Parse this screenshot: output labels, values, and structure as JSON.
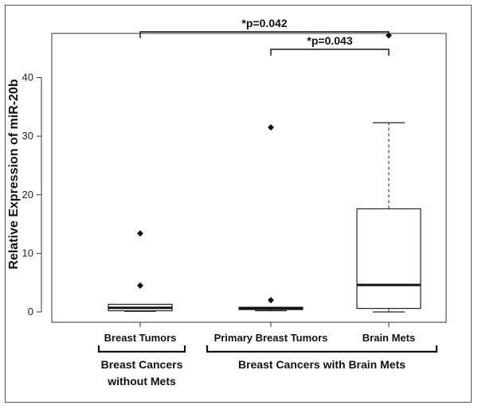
{
  "chart_data": {
    "type": "boxplot",
    "ylabel": "Relative Expression of miR-20b",
    "ylim": [
      0,
      47
    ],
    "yticks": [
      0,
      10,
      20,
      30,
      40
    ],
    "categories": [
      "Breast Tumors",
      "Primary Breast Tumors",
      "Brain Mets"
    ],
    "boxes": [
      {
        "name": "Breast Tumors",
        "min": 0.1,
        "q1": 0.2,
        "median": 0.7,
        "q3": 1.3,
        "max": 1.4,
        "outliers": [
          4.5,
          13.4
        ]
      },
      {
        "name": "Primary Breast Tumors",
        "min": 0.2,
        "q1": 0.4,
        "median": 0.6,
        "q3": 0.8,
        "max": 0.9,
        "outliers": [
          2.0,
          31.5
        ]
      },
      {
        "name": "Brain Mets",
        "min": 0.0,
        "q1": 0.6,
        "median": 4.6,
        "q3": 17.6,
        "max": 32.3,
        "outliers": [
          47.2
        ]
      }
    ],
    "comparisons": [
      {
        "from": "Breast Tumors",
        "to": "Brain Mets",
        "label": "*p=0.042"
      },
      {
        "from": "Primary Breast Tumors",
        "to": "Brain Mets",
        "label": "*p=0.043"
      }
    ],
    "groups": [
      {
        "lines": [
          "Breast Cancers",
          "without Mets"
        ],
        "categories": [
          "Breast Tumors"
        ]
      },
      {
        "lines": [
          "Breast Cancers with Brain Mets"
        ],
        "categories": [
          "Primary Breast Tumors",
          "Brain Mets"
        ]
      }
    ]
  }
}
